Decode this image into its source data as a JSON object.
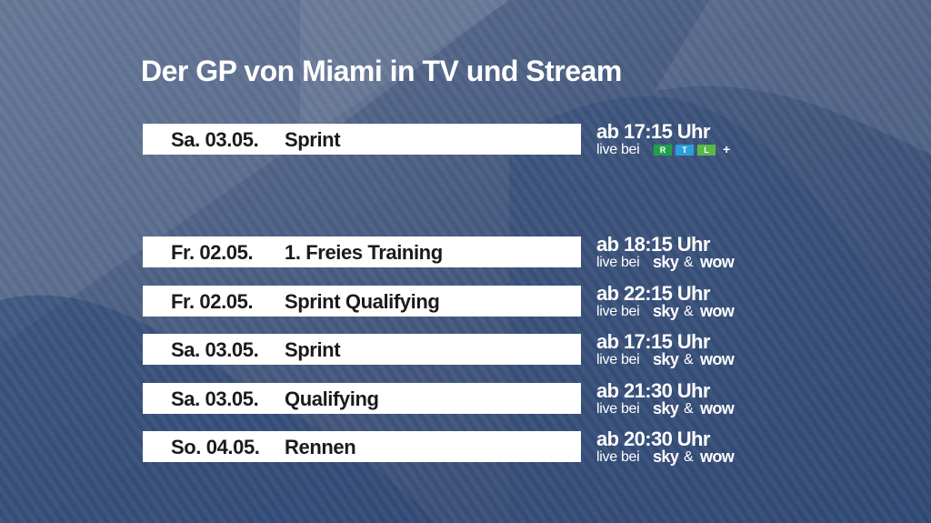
{
  "title": "Der GP von Miami in TV und Stream",
  "rtl_section": {
    "date": "Sa. 03.05.",
    "event": "Sprint",
    "time": "ab 17:15 Uhr",
    "live_label": "live bei",
    "broadcaster": {
      "letters": [
        "R",
        "T",
        "L"
      ],
      "plus": "+",
      "colors": [
        "#1fa14a",
        "#2a9fd8",
        "#59b848"
      ]
    }
  },
  "sky_section": {
    "live_label": "live bei",
    "brand_sky": "sky",
    "ampersand": "&",
    "brand_wow": "wow",
    "rows": [
      {
        "date": "Fr. 02.05.",
        "event": "1. Freies Training",
        "time": "ab 18:15 Uhr"
      },
      {
        "date": "Fr. 02.05.",
        "event": "Sprint Qualifying",
        "time": "ab 22:15 Uhr"
      },
      {
        "date": "Sa. 03.05.",
        "event": "Sprint",
        "time": "ab 17:15 Uhr"
      },
      {
        "date": "Sa. 03.05.",
        "event": "Qualifying",
        "time": "ab 21:30 Uhr"
      },
      {
        "date": "So. 04.05.",
        "event": "Rennen",
        "time": "ab 20:30 Uhr"
      }
    ]
  },
  "colors": {
    "background": "#3a4f73",
    "row_bg": "#ffffff",
    "text_dark": "#1a1a1a"
  }
}
